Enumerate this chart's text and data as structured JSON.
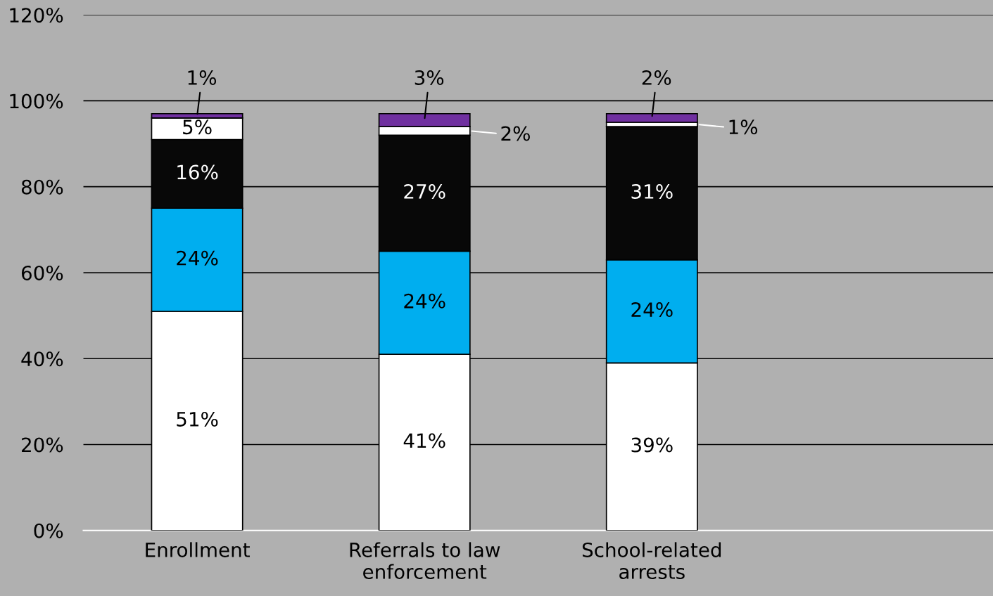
{
  "chart_data": {
    "type": "bar",
    "stacked": true,
    "categories": [
      "Enrollment",
      "Referrals to law\nenforcement",
      "School-related\narrests",
      null
    ],
    "series": [
      {
        "color": "#ffffff",
        "values": [
          51,
          41,
          39,
          null
        ],
        "value_labels": [
          "51%",
          "41%",
          "39%",
          null
        ]
      },
      {
        "color": "#00aeef",
        "values": [
          24,
          24,
          24,
          null
        ],
        "value_labels": [
          "24%",
          "24%",
          "24%",
          null
        ]
      },
      {
        "color": "#080808",
        "values": [
          16,
          27,
          31,
          null
        ],
        "value_labels": [
          "16%",
          "27%",
          "31%",
          null
        ]
      },
      {
        "color": "#ffffff",
        "values": [
          5,
          2,
          1,
          null
        ],
        "value_labels": [
          "5%",
          "2%",
          "1%",
          null
        ]
      },
      {
        "color": "#7030a0",
        "values": [
          1,
          3,
          2,
          null
        ],
        "value_labels": [
          "1%",
          "3%",
          "2%",
          null
        ]
      }
    ],
    "ylim": [
      0,
      120
    ],
    "yticks": [
      {
        "value": 0,
        "label": "0%"
      },
      {
        "value": 20,
        "label": "20%"
      },
      {
        "value": 40,
        "label": "40%"
      },
      {
        "value": 60,
        "label": "60%"
      },
      {
        "value": 80,
        "label": "80%"
      },
      {
        "value": 100,
        "label": "100%"
      },
      {
        "value": 120,
        "label": "120%"
      }
    ],
    "grid": "y",
    "legend": false
  }
}
